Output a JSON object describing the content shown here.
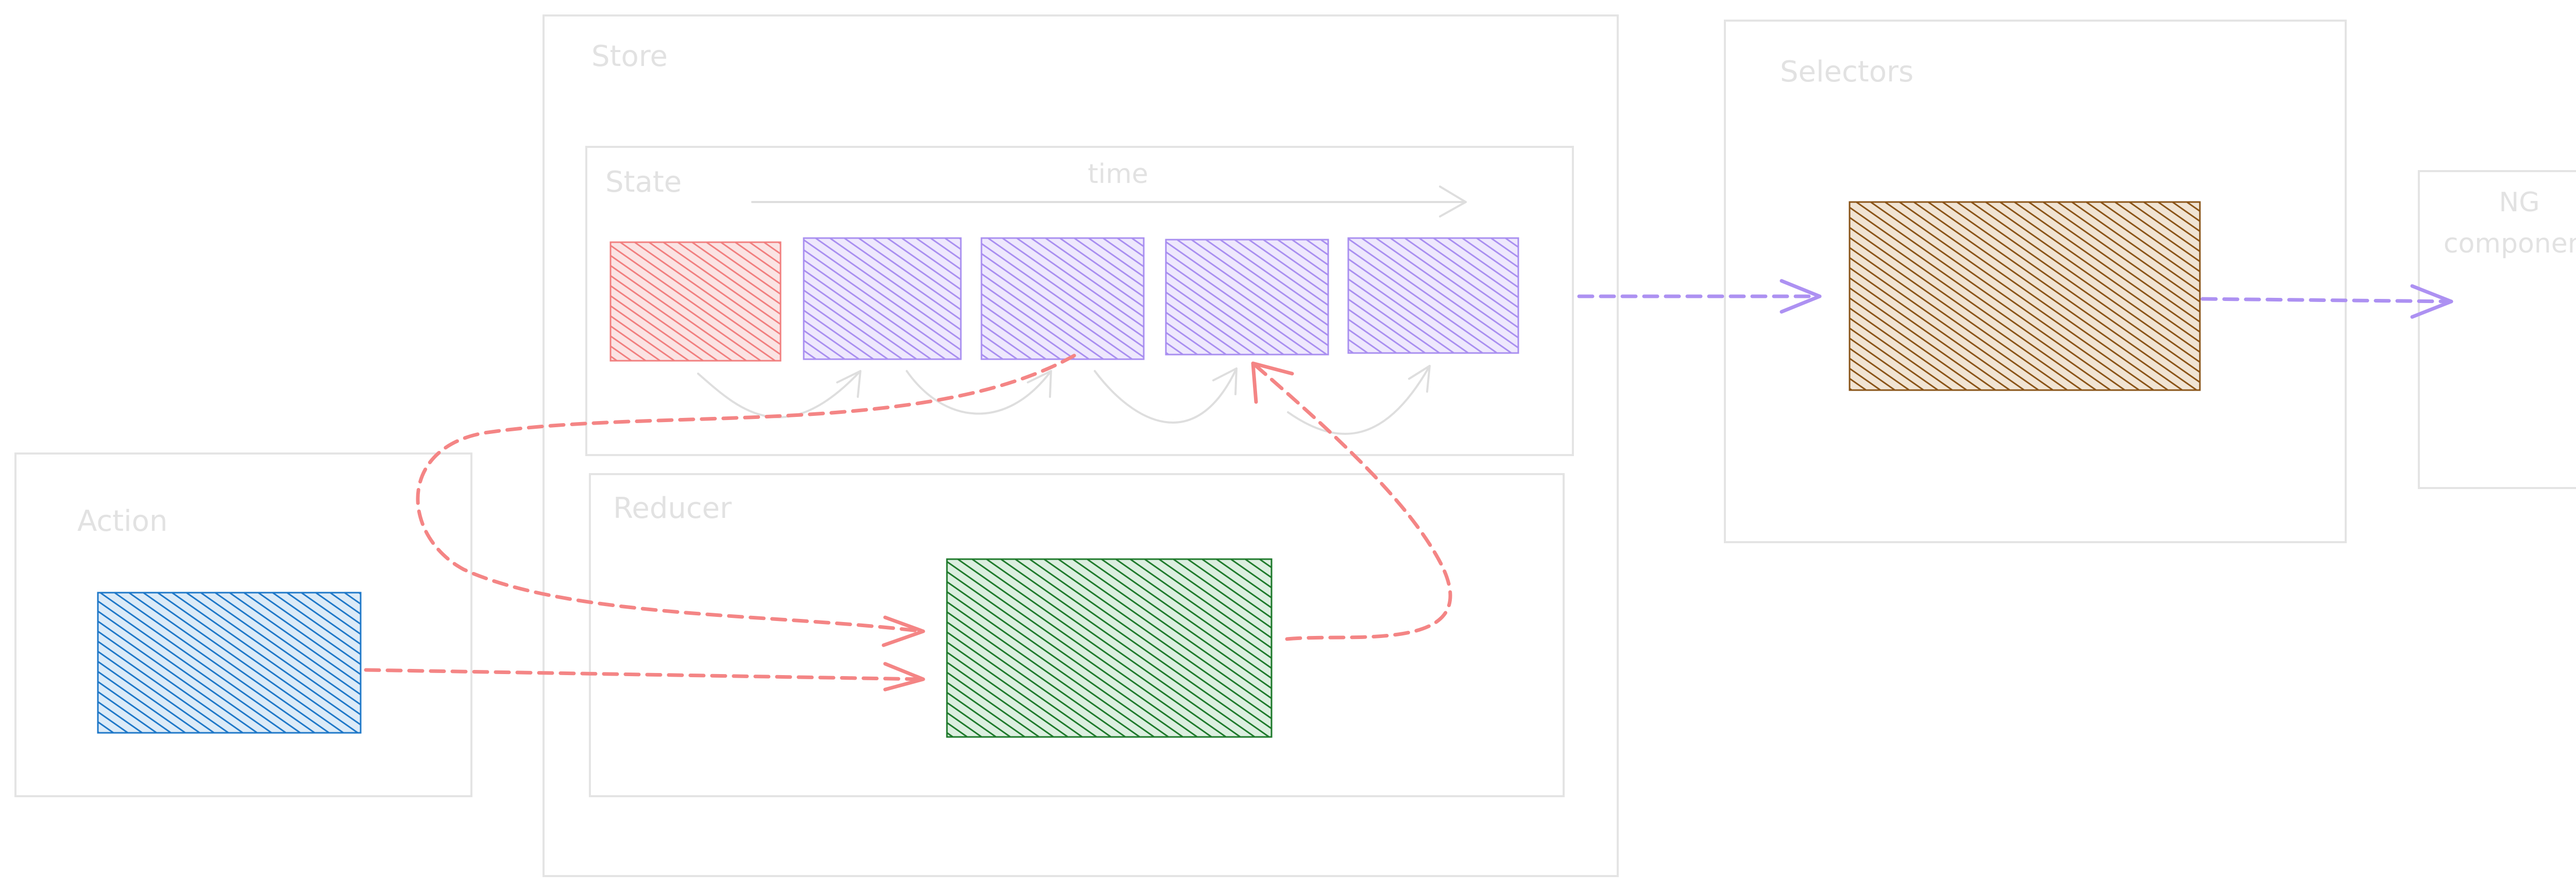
{
  "frames": {
    "store": "Store",
    "state": "State",
    "reducer": "Reducer",
    "action": "Action",
    "selectors": "Selectors",
    "ng_component": [
      "NG",
      "component"
    ]
  },
  "timeline": {
    "label": "time"
  },
  "state_boxes": [
    {
      "lines": [
        "",
        ""
      ],
      "color": "#f17f7f"
    },
    {
      "lines": [
        ""
      ],
      "color": "#a98ff0"
    },
    {
      "lines": [
        ""
      ],
      "color": "#a98ff0"
    },
    {
      "lines": [
        ""
      ],
      "color": "#a98ff0"
    },
    {
      "lines": [
        ""
      ],
      "color": "#a98ff0"
    }
  ],
  "action_box": {
    "lines": [
      "",
      ""
    ],
    "color": "#1f78c8"
  },
  "reducer_box": {
    "lines": [
      ""
    ],
    "color": "#1f7a2c"
  },
  "selector_box": {
    "lines": [
      ""
    ],
    "color": "#8a5418"
  },
  "colors": {
    "red_flow": "#f48585",
    "purple_flow": "#ad91f2",
    "frame": "#e4e4e4"
  }
}
